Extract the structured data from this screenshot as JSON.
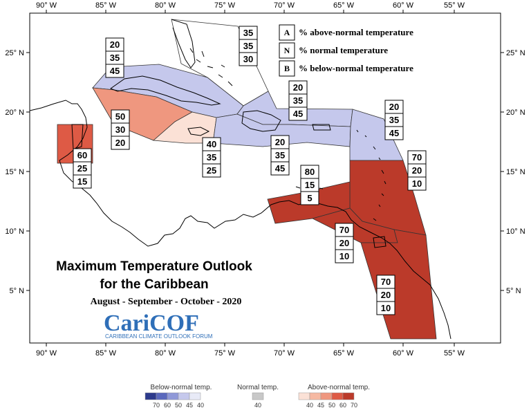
{
  "map": {
    "title_line1": "Maximum Temperature Outlook",
    "title_line2": "for the Caribbean",
    "period": "August - September - October - 2020",
    "logo_text": "CariCOF",
    "logo_subtitle": "CARIBBEAN CLIMATE OUTLOOK FORUM",
    "longitude_labels": [
      "90° W",
      "85° W",
      "80° W",
      "75° W",
      "70° W",
      "65° W",
      "60° W",
      "55° W"
    ],
    "latitude_labels": [
      "25° N",
      "20° N",
      "15° N",
      "10° N",
      "5° N"
    ],
    "legend": [
      {
        "key": "A",
        "text": "% above-normal temperature"
      },
      {
        "key": "N",
        "text": "% normal temperature"
      },
      {
        "key": "B",
        "text": "% below-normal temperature"
      }
    ],
    "colors": {
      "below_45": "#c5c8ec",
      "above_40": "#fbe1d6",
      "above_50": "#ef977f",
      "above_60": "#de5a45",
      "above_70": "#bb3a2a"
    },
    "zones": [
      {
        "id": "bahamas",
        "A": "35",
        "N": "35",
        "B": "30",
        "fill": "none"
      },
      {
        "id": "cuba",
        "A": "20",
        "N": "35",
        "B": "45",
        "fill": "below_45"
      },
      {
        "id": "west-caribbean-sea",
        "A": "50",
        "N": "30",
        "B": "20",
        "fill": "above_50"
      },
      {
        "id": "jamaica",
        "A": "40",
        "N": "35",
        "B": "25",
        "fill": "above_40"
      },
      {
        "id": "belize",
        "A": "60",
        "N": "25",
        "B": "15",
        "fill": "above_60"
      },
      {
        "id": "greater-antilles-north",
        "A": "20",
        "N": "35",
        "B": "45",
        "fill": "below_45"
      },
      {
        "id": "greater-antilles-south",
        "A": "20",
        "N": "35",
        "B": "45",
        "fill": "below_45"
      },
      {
        "id": "northern-leewards",
        "A": "20",
        "N": "35",
        "B": "45",
        "fill": "below_45"
      },
      {
        "id": "eastern-caribbean",
        "A": "70",
        "N": "20",
        "B": "10",
        "fill": "above_70"
      },
      {
        "id": "abc-islands",
        "A": "80",
        "N": "15",
        "B": "5",
        "fill": "above_70"
      },
      {
        "id": "trinidad",
        "A": "70",
        "N": "20",
        "B": "10",
        "fill": "above_70"
      },
      {
        "id": "guianas",
        "A": "70",
        "N": "20",
        "B": "10",
        "fill": "above_70"
      }
    ]
  },
  "scale": {
    "below": {
      "title": "Below-normal temp.",
      "ticks": [
        "70",
        "60",
        "50",
        "45",
        "40"
      ],
      "colors": [
        "#2d3a8c",
        "#5a68bd",
        "#8f98d8",
        "#c5c8ec",
        "#e8eaf7"
      ]
    },
    "normal": {
      "title": "Normal temp.",
      "ticks": [
        "40"
      ],
      "colors": [
        "#c8c8c8"
      ]
    },
    "above": {
      "title": "Above-normal temp.",
      "ticks": [
        "40",
        "45",
        "50",
        "60",
        "70"
      ],
      "colors": [
        "#fbe1d6",
        "#f6b9a2",
        "#ef977f",
        "#de5a45",
        "#bb3a2a"
      ]
    }
  }
}
